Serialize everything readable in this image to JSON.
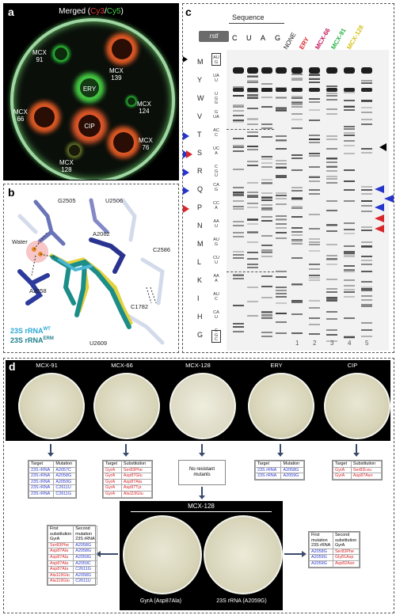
{
  "panels": {
    "a": {
      "letter": "a",
      "title_prefix": "Merged (",
      "title_cy3": "Cy3",
      "title_sep": "/",
      "title_cy5": "Cy5",
      "title_suffix": ")",
      "discs": [
        {
          "label": "MCX\n91",
          "id": "mcx-91"
        },
        {
          "label": "MCX\n139",
          "id": "mcx-139"
        },
        {
          "label": "ERY",
          "id": "ery"
        },
        {
          "label": "MCX\n124",
          "id": "mcx-124"
        },
        {
          "label": "MCX\n66",
          "id": "mcx-66"
        },
        {
          "label": "CIP",
          "id": "cip"
        },
        {
          "label": "MCX\n76",
          "id": "mcx-76"
        },
        {
          "label": "MCX\n128",
          "id": "mcx-128"
        }
      ]
    },
    "b": {
      "letter": "b",
      "residues": [
        "G2505",
        "U2506",
        "A2062",
        "C2586",
        "Water",
        "A2058",
        "C1782",
        "U2609"
      ],
      "legend_wt": "23S rRNA",
      "legend_wt_sup": "WT",
      "legend_erm": "23S rRNA",
      "legend_erm_sup": "ERM"
    },
    "c": {
      "letter": "c",
      "gene": "rstl",
      "sequence_header": "Sequence",
      "seq_lanes": [
        "C",
        "U",
        "A",
        "G"
      ],
      "sample_lanes": [
        {
          "label": "NONE",
          "color": "#222222"
        },
        {
          "label": "ERY",
          "color": "#d8262b"
        },
        {
          "label": "MCX-66",
          "color": "#c2185b"
        },
        {
          "label": "MCX-91",
          "color": "#2bb34a"
        },
        {
          "label": "MCX-128",
          "color": "#d4c21a"
        }
      ],
      "lane_numbers": [
        "1",
        "2",
        "3",
        "4",
        "5"
      ],
      "amino_acids": [
        "M",
        "Y",
        "W",
        "V",
        "T",
        "S",
        "R",
        "Q",
        "P",
        "N",
        "M",
        "L",
        "K",
        "I",
        "H",
        "G"
      ],
      "codons": [
        "AUG",
        "UAU",
        "UGG",
        "GUA",
        "ACC",
        "UCA",
        "CGU",
        "CAG",
        "CCA",
        "AAU",
        "AUG",
        "CUU",
        "AAA",
        "AUC",
        "CAU",
        "GGC"
      ]
    },
    "d": {
      "letter": "d",
      "plates": [
        "MCX-91",
        "MCX-66",
        "MCX-128",
        "ERY",
        "CIP"
      ],
      "table_headers": {
        "target": "Target",
        "mutation": "Mutation",
        "substitution": "Substitution"
      },
      "mcx91_rows": [
        [
          "23S rRNA",
          "A2057C"
        ],
        [
          "23S rRNA",
          "A2058G"
        ],
        [
          "23S rRNA",
          "A2059G"
        ],
        [
          "23S rRNA",
          "C2611U"
        ],
        [
          "23S rRNA",
          "C2611G"
        ]
      ],
      "mcx66_rows": [
        [
          "GyrA",
          "Ser83Phe"
        ],
        [
          "GyrA",
          "Asp87Glu"
        ],
        [
          "GyrA",
          "Asp87Ala"
        ],
        [
          "GyrA",
          "Asp87Tyr"
        ],
        [
          "GyrA",
          "Ala119Glu"
        ]
      ],
      "mcx128_note": "No resistant\nmutants",
      "ery_rows": [
        [
          "23S rRNA",
          "A2058G"
        ],
        [
          "23S rRNA",
          "A2059G"
        ]
      ],
      "cip_rows": [
        [
          "GyrA",
          "Ser83Leu"
        ],
        [
          "GyrA",
          "Asp87Asn"
        ]
      ],
      "bottom_title": "MCX-128",
      "bottom_plate_left": "GyrA (Asp87Ala)",
      "bottom_plate_right": "23S rRNA (A2059G)",
      "left_table": {
        "h1": "First\nsubstitution\nGyrA",
        "h2": "Second\nmutation\n23S rRNA",
        "rows": [
          [
            "Ser83Phe",
            "A2058G"
          ],
          [
            "Asp87Ala",
            "A2058G"
          ],
          [
            "Asp87Ala",
            "A2059G"
          ],
          [
            "Asp87Ala",
            "A2059C"
          ],
          [
            "Asp87Ala",
            "C2611G"
          ],
          [
            "Ala119Glu",
            "A2058G"
          ],
          [
            "Ala119Glu",
            "C2611U"
          ]
        ]
      },
      "right_table": {
        "h1": "First\nmutation\n23S rRNA",
        "h2": "Second\nsubstitution\nGyrA",
        "rows": [
          [
            "A2058G",
            "Ser83Phe"
          ],
          [
            "A2059G",
            "Gly81Asp"
          ],
          [
            "A2059G",
            "Asp82Asn"
          ]
        ]
      }
    }
  }
}
